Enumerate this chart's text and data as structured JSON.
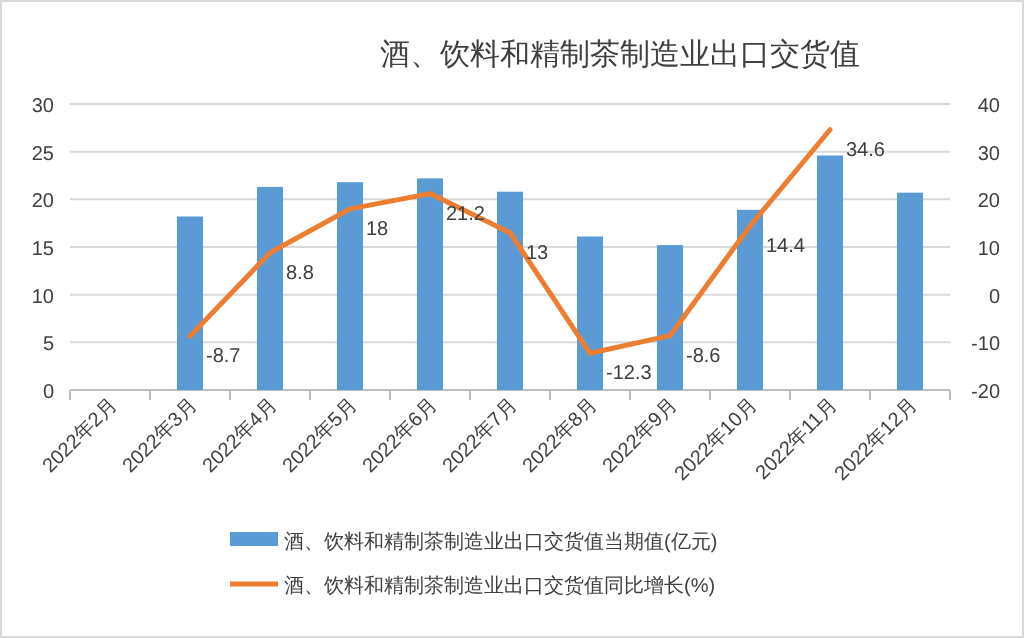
{
  "chart_data": {
    "type": "bar",
    "title": "酒、饮料和精制茶制造业出口交货值",
    "categories": [
      "2022年2月",
      "2022年3月",
      "2022年4月",
      "2022年5月",
      "2022年6月",
      "2022年7月",
      "2022年8月",
      "2022年9月",
      "2022年10月",
      "2022年11月",
      "2022年12月"
    ],
    "series": [
      {
        "name": "酒、饮料和精制茶制造业出口交货值当期值(亿元)",
        "color": "#5b9bd5",
        "values": [
          null,
          18.2,
          21.3,
          21.8,
          22.2,
          20.8,
          16.1,
          15.2,
          18.9,
          24.6,
          20.7
        ]
      },
      {
        "name": "酒、饮料和精制茶制造业出口交货值同比增长(%)",
        "type": "line",
        "axis": "y2",
        "color": "#ed7d31",
        "values": [
          null,
          -8.7,
          8.8,
          18,
          21.2,
          13,
          -12.3,
          -8.6,
          14.4,
          34.6,
          null
        ],
        "value_labels": [
          null,
          "-8.7",
          "8.8",
          "18",
          "21.2",
          "13",
          "-12.3",
          "-8.6",
          "14.4",
          "34.6",
          null
        ]
      }
    ],
    "ylim": [
      0,
      30
    ],
    "yticks": [
      0,
      5,
      10,
      15,
      20,
      25,
      30
    ],
    "y2lim": [
      -20,
      40
    ],
    "y2ticks": [
      -20,
      -10,
      0,
      10,
      20,
      30,
      40
    ],
    "grid": "y",
    "legend": "bottom"
  }
}
